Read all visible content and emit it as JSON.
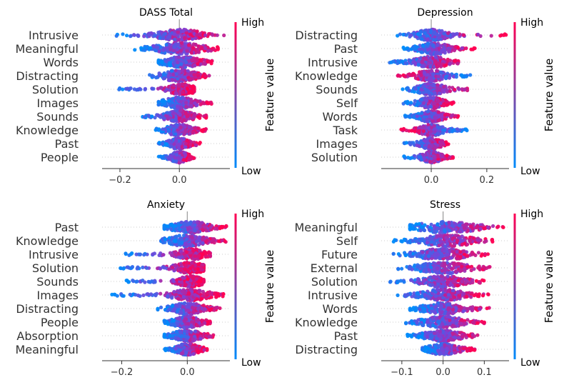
{
  "colors": {
    "high": "#ff0052",
    "low": "#008bfb",
    "axis": "#333333",
    "zero_line": "#999999",
    "row_guide": "#cccccc"
  },
  "colorbar": {
    "high_label": "High",
    "low_label": "Low",
    "title": "Feature value"
  },
  "chart_data": [
    {
      "type": "scatter",
      "subtype": "beeswarm",
      "title": "DASS Total",
      "xlim": [
        -0.26,
        0.17
      ],
      "xticks": [
        -0.2,
        0.0
      ],
      "xtick_labels": [
        "−0.2",
        "0.0"
      ],
      "features": [
        {
          "name": "Intrusive",
          "min": -0.22,
          "max": 0.15,
          "spread": 0.05,
          "corr": 1,
          "mean": 0.0
        },
        {
          "name": "Meaningful",
          "min": -0.15,
          "max": 0.13,
          "spread": 0.055,
          "corr": 1,
          "mean": 0.0
        },
        {
          "name": "Words",
          "min": -0.07,
          "max": 0.11,
          "spread": 0.04,
          "corr": 1,
          "mean": 0.01
        },
        {
          "name": "Distracting",
          "min": -0.1,
          "max": 0.1,
          "spread": 0.04,
          "corr": 1,
          "mean": 0.0
        },
        {
          "name": "Solution",
          "min": -0.21,
          "max": 0.05,
          "spread": 0.03,
          "corr": 1,
          "mean": 0.01
        },
        {
          "name": "Images",
          "min": -0.07,
          "max": 0.11,
          "spread": 0.035,
          "corr": 1,
          "mean": 0.0
        },
        {
          "name": "Sounds",
          "min": -0.14,
          "max": 0.09,
          "spread": 0.035,
          "corr": 1,
          "mean": 0.0
        },
        {
          "name": "Knowledge",
          "min": -0.08,
          "max": 0.09,
          "spread": 0.03,
          "corr": 1,
          "mean": 0.0
        },
        {
          "name": "Past",
          "min": -0.07,
          "max": 0.07,
          "spread": 0.025,
          "corr": 1,
          "mean": 0.0
        },
        {
          "name": "People",
          "min": -0.07,
          "max": 0.05,
          "spread": 0.02,
          "corr": 1,
          "mean": 0.0
        }
      ]
    },
    {
      "type": "scatter",
      "subtype": "beeswarm",
      "title": "Depression",
      "xlim": [
        -0.18,
        0.28
      ],
      "xticks": [
        0.0,
        0.2
      ],
      "xtick_labels": [
        "0.0",
        "0.2"
      ],
      "features": [
        {
          "name": "Distracting",
          "min": -0.16,
          "max": 0.27,
          "spread": 0.04,
          "corr": 1,
          "mean": 0.0
        },
        {
          "name": "Past",
          "min": -0.1,
          "max": 0.16,
          "spread": 0.04,
          "corr": 1,
          "mean": 0.01
        },
        {
          "name": "Intrusive",
          "min": -0.15,
          "max": 0.11,
          "spread": 0.04,
          "corr": 1,
          "mean": 0.0
        },
        {
          "name": "Knowledge",
          "min": -0.12,
          "max": 0.15,
          "spread": 0.035,
          "corr": -1,
          "mean": 0.0
        },
        {
          "name": "Sounds",
          "min": -0.11,
          "max": 0.14,
          "spread": 0.035,
          "corr": 1,
          "mean": 0.0
        },
        {
          "name": "Self",
          "min": -0.1,
          "max": 0.08,
          "spread": 0.03,
          "corr": 1,
          "mean": 0.0
        },
        {
          "name": "Words",
          "min": -0.1,
          "max": 0.1,
          "spread": 0.03,
          "corr": 1,
          "mean": 0.0
        },
        {
          "name": "Task",
          "min": -0.11,
          "max": 0.13,
          "spread": 0.03,
          "corr": -1,
          "mean": 0.0
        },
        {
          "name": "Images",
          "min": -0.1,
          "max": 0.07,
          "spread": 0.025,
          "corr": 1,
          "mean": 0.0
        },
        {
          "name": "Solution",
          "min": -0.1,
          "max": 0.08,
          "spread": 0.025,
          "corr": 1,
          "mean": 0.0
        }
      ]
    },
    {
      "type": "scatter",
      "subtype": "beeswarm",
      "title": "Anxiety",
      "xlim": [
        -0.26,
        0.13
      ],
      "xticks": [
        -0.2,
        0.0
      ],
      "xtick_labels": [
        "−0.2",
        "0.0"
      ],
      "features": [
        {
          "name": "Past",
          "min": -0.07,
          "max": 0.12,
          "spread": 0.04,
          "corr": 1,
          "mean": 0.01
        },
        {
          "name": "Knowledge",
          "min": -0.08,
          "max": 0.12,
          "spread": 0.04,
          "corr": 1,
          "mean": 0.0
        },
        {
          "name": "Intrusive",
          "min": -0.19,
          "max": 0.07,
          "spread": 0.03,
          "corr": 1,
          "mean": 0.01
        },
        {
          "name": "Solution",
          "min": -0.22,
          "max": 0.05,
          "spread": 0.03,
          "corr": 1,
          "mean": 0.01
        },
        {
          "name": "Sounds",
          "min": -0.19,
          "max": 0.05,
          "spread": 0.025,
          "corr": 1,
          "mean": 0.01
        },
        {
          "name": "Images",
          "min": -0.24,
          "max": 0.11,
          "spread": 0.04,
          "corr": 1,
          "mean": 0.01
        },
        {
          "name": "Distracting",
          "min": -0.09,
          "max": 0.1,
          "spread": 0.035,
          "corr": 1,
          "mean": 0.0
        },
        {
          "name": "People",
          "min": -0.07,
          "max": 0.07,
          "spread": 0.03,
          "corr": 1,
          "mean": 0.0
        },
        {
          "name": "Absorption",
          "min": -0.07,
          "max": 0.08,
          "spread": 0.03,
          "corr": 1,
          "mean": 0.0
        },
        {
          "name": "Meaningful",
          "min": -0.07,
          "max": 0.06,
          "spread": 0.025,
          "corr": 1,
          "mean": 0.0
        }
      ]
    },
    {
      "type": "scatter",
      "subtype": "beeswarm",
      "title": "Stress",
      "xlim": [
        -0.15,
        0.16
      ],
      "xticks": [
        -0.1,
        0.0,
        0.1
      ],
      "xtick_labels": [
        "−0.1",
        "0.0",
        "0.1"
      ],
      "features": [
        {
          "name": "Meaningful",
          "min": -0.08,
          "max": 0.15,
          "spread": 0.05,
          "corr": 1,
          "mean": 0.01
        },
        {
          "name": "Self",
          "min": -0.12,
          "max": 0.12,
          "spread": 0.045,
          "corr": 1,
          "mean": 0.01
        },
        {
          "name": "Future",
          "min": -0.13,
          "max": 0.11,
          "spread": 0.04,
          "corr": 1,
          "mean": 0.0
        },
        {
          "name": "External",
          "min": -0.11,
          "max": 0.12,
          "spread": 0.04,
          "corr": 1,
          "mean": 0.0
        },
        {
          "name": "Solution",
          "min": -0.14,
          "max": 0.1,
          "spread": 0.035,
          "corr": 1,
          "mean": 0.0
        },
        {
          "name": "Intrusive",
          "min": -0.11,
          "max": 0.11,
          "spread": 0.035,
          "corr": 1,
          "mean": 0.0
        },
        {
          "name": "Words",
          "min": -0.08,
          "max": 0.12,
          "spread": 0.035,
          "corr": 1,
          "mean": 0.0
        },
        {
          "name": "Knowledge",
          "min": -0.09,
          "max": 0.1,
          "spread": 0.035,
          "corr": 1,
          "mean": 0.0
        },
        {
          "name": "Past",
          "min": -0.09,
          "max": 0.09,
          "spread": 0.03,
          "corr": 1,
          "mean": 0.0
        },
        {
          "name": "Distracting",
          "min": -0.05,
          "max": 0.08,
          "spread": 0.025,
          "corr": 1,
          "mean": 0.0
        }
      ]
    }
  ]
}
